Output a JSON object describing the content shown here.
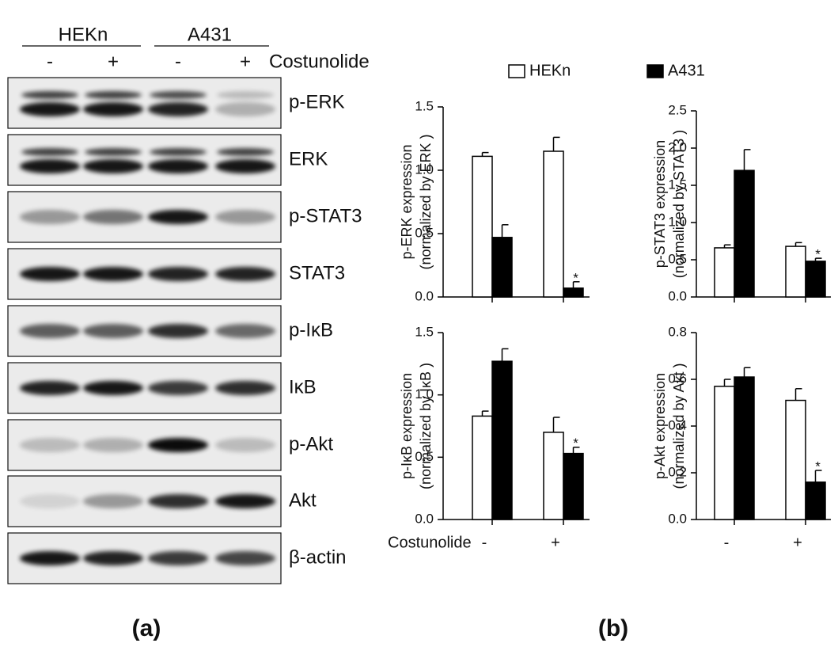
{
  "blot": {
    "groups": [
      "HEKn",
      "A431"
    ],
    "lanes": [
      "-",
      "+",
      "-",
      "+"
    ],
    "treatment": "Costunolide",
    "rows": [
      "p-ERK",
      "ERK",
      "p-STAT3",
      "STAT3",
      "p-IκB",
      "IκB",
      "p-Akt",
      "Akt",
      "β-actin"
    ]
  },
  "panels": [
    "(a)",
    "(b)"
  ],
  "chart_data": [
    {
      "type": "bar",
      "y_label": [
        "p-ERK expression",
        "(normalized by ERK )"
      ],
      "categories": [
        null,
        null
      ],
      "ylim": [
        0,
        1.5
      ],
      "yticks": [
        {
          "value": 0,
          "label": "0.0"
        },
        0.5,
        {
          "value": 1,
          "label": "1.0"
        },
        1.5
      ],
      "series": [
        {
          "name": "HEKn",
          "color": "#ffffff",
          "values": [
            1.11,
            1.15
          ],
          "errors": [
            0.03,
            0.11
          ]
        },
        {
          "name": "A431",
          "color": "#000000",
          "values": [
            0.47,
            0.07
          ],
          "errors": [
            0.1,
            0.05
          ],
          "annotations": [
            null,
            "*"
          ]
        }
      ]
    },
    {
      "type": "bar",
      "y_label": [
        "p-STAT3 expression",
        "(normalized by STAT3 )"
      ],
      "categories": [
        null,
        null
      ],
      "ylim": [
        0,
        2.5
      ],
      "yticks": [
        {
          "value": 0,
          "label": "0.0"
        },
        0.5,
        {
          "value": 1,
          "label": "1.0"
        },
        1.5,
        {
          "value": 2,
          "label": "2.0"
        },
        2.5
      ],
      "series": [
        {
          "name": "HEKn",
          "color": "#ffffff",
          "values": [
            0.66,
            0.68
          ],
          "errors": [
            0.04,
            0.05
          ]
        },
        {
          "name": "A431",
          "color": "#000000",
          "values": [
            1.7,
            0.48
          ],
          "errors": [
            0.28,
            0.04
          ],
          "annotations": [
            null,
            "*"
          ]
        }
      ]
    },
    {
      "type": "bar",
      "y_label": [
        "p-IκB expression",
        "(normalized by IκB )"
      ],
      "x_label": "Costunolide",
      "categories": [
        "-",
        "+"
      ],
      "ylim": [
        0,
        1.5
      ],
      "yticks": [
        {
          "value": 0,
          "label": "0.0"
        },
        0.5,
        {
          "value": 1,
          "label": "1.0"
        },
        1.5
      ],
      "series": [
        {
          "name": "HEKn",
          "color": "#ffffff",
          "values": [
            0.83,
            0.7
          ],
          "errors": [
            0.04,
            0.12
          ]
        },
        {
          "name": "A431",
          "color": "#000000",
          "values": [
            1.27,
            0.53
          ],
          "errors": [
            0.1,
            0.05
          ],
          "annotations": [
            null,
            "*"
          ]
        }
      ]
    },
    {
      "type": "bar",
      "y_label": [
        "p-Akt expression",
        "(normalized by Akt )"
      ],
      "categories": [
        "-",
        "+"
      ],
      "ylim": [
        0,
        0.8
      ],
      "yticks": [
        {
          "value": 0,
          "label": "0.0"
        },
        0.2,
        0.4,
        0.6,
        0.8
      ],
      "series": [
        {
          "name": "HEKn",
          "color": "#ffffff",
          "values": [
            0.57,
            0.51
          ],
          "errors": [
            0.03,
            0.05
          ]
        },
        {
          "name": "A431",
          "color": "#000000",
          "values": [
            0.61,
            0.16
          ],
          "errors": [
            0.04,
            0.05
          ],
          "annotations": [
            null,
            "*"
          ]
        }
      ]
    }
  ]
}
